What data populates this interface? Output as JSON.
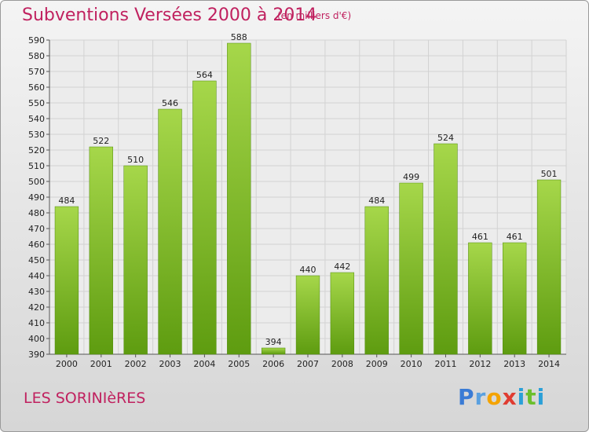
{
  "header": {
    "title": "Subventions Versées 2000 à 2014",
    "unit": "(en milliers d'€)"
  },
  "footer": {
    "commune": "LES SORINIèRES",
    "logo_letters": [
      "P",
      "r",
      "o",
      "x",
      "i",
      "t",
      "i"
    ]
  },
  "colors": {
    "title": "#c0215f",
    "bar_top": "#a6d74a",
    "bar_bottom": "#5e9c10",
    "logo": [
      "#3a7bd5",
      "#5aa0e0",
      "#f4a300",
      "#e03c31",
      "#2aa0d8",
      "#6bbf2c",
      "#2aa0d8"
    ]
  },
  "chart_data": {
    "type": "bar",
    "categories": [
      "2000",
      "2001",
      "2002",
      "2003",
      "2004",
      "2005",
      "2006",
      "2007",
      "2008",
      "2009",
      "2010",
      "2011",
      "2012",
      "2013",
      "2014"
    ],
    "values": [
      484,
      522,
      510,
      546,
      564,
      588,
      394,
      440,
      442,
      484,
      499,
      524,
      461,
      461,
      501
    ],
    "ylim": [
      390,
      590
    ],
    "ytick_step": 10,
    "grid": true
  }
}
